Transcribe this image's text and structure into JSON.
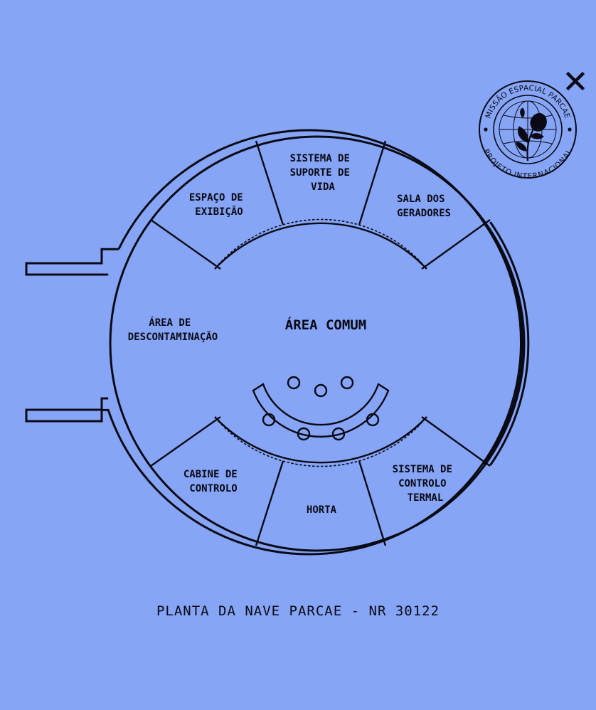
{
  "colors": {
    "background": "#86a5f7",
    "ink": "#0a0a14"
  },
  "close_icon": "close-icon",
  "seal": {
    "top_text": "MISSÃO ESPACIAL PARCAE",
    "bottom_text": "PROJETO INTERNACIONAL",
    "emblem": "rose-on-globe"
  },
  "rooms": {
    "espaco_exibicao": [
      "ESPAÇO DE",
      "EXIBIÇÃO"
    ],
    "suporte_vida": [
      "SISTEMA DE",
      "SUPORTE DE",
      "VIDA"
    ],
    "sala_geradores": [
      "SALA DOS",
      "GERADORES"
    ],
    "descontaminacao": [
      "ÁREA DE",
      "DESCONTAMINAÇÃO"
    ],
    "area_comum": "ÁREA COMUM",
    "cabine_controlo": [
      "CABINE DE",
      "CONTROLO"
    ],
    "horta": "HORTA",
    "controlo_termal": [
      "SISTEMA DE",
      "CONTROLO",
      "TERMAL"
    ]
  },
  "caption": "PLANTA DA NAVE PARCAE - NR 30122"
}
